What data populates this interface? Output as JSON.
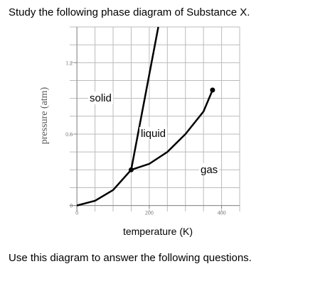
{
  "chart_data": {
    "type": "line",
    "title": "Study the following phase diagram of Substance X.",
    "footer": "Use this diagram to answer the following questions.",
    "x_label": "temperature (K)",
    "y_label": "pressure (atm)",
    "xlim": [
      -20,
      450
    ],
    "ylim": [
      -0.05,
      1.5
    ],
    "xticks": [
      0,
      200,
      400
    ],
    "yticks": [
      0,
      0.6,
      1.2
    ],
    "xgrid": [
      0,
      50,
      100,
      150,
      200,
      250,
      300,
      350,
      400,
      450
    ],
    "ygrid": [
      0,
      0.15,
      0.3,
      0.45,
      0.6,
      0.75,
      0.9,
      1.05,
      1.2,
      1.35,
      1.5
    ],
    "grid": true,
    "annotations": [
      "solid",
      "liquid",
      "gas"
    ],
    "series": [
      {
        "x": [
          0,
          50,
          100,
          150
        ],
        "values": [
          0,
          0.04,
          0.13,
          0.3
        ],
        "color": "#000000"
      },
      {
        "x": [
          150,
          200,
          250,
          300,
          350,
          375
        ],
        "values": [
          0.3,
          0.35,
          0.45,
          0.6,
          0.79,
          0.97
        ],
        "color": "#000000"
      },
      {
        "x": [
          150,
          225
        ],
        "values": [
          0.3,
          1.5
        ],
        "color": "#000000"
      }
    ],
    "points": {
      "x": [
        150,
        375
      ],
      "values": [
        0.3,
        0.97
      ],
      "color": "#000000"
    }
  }
}
